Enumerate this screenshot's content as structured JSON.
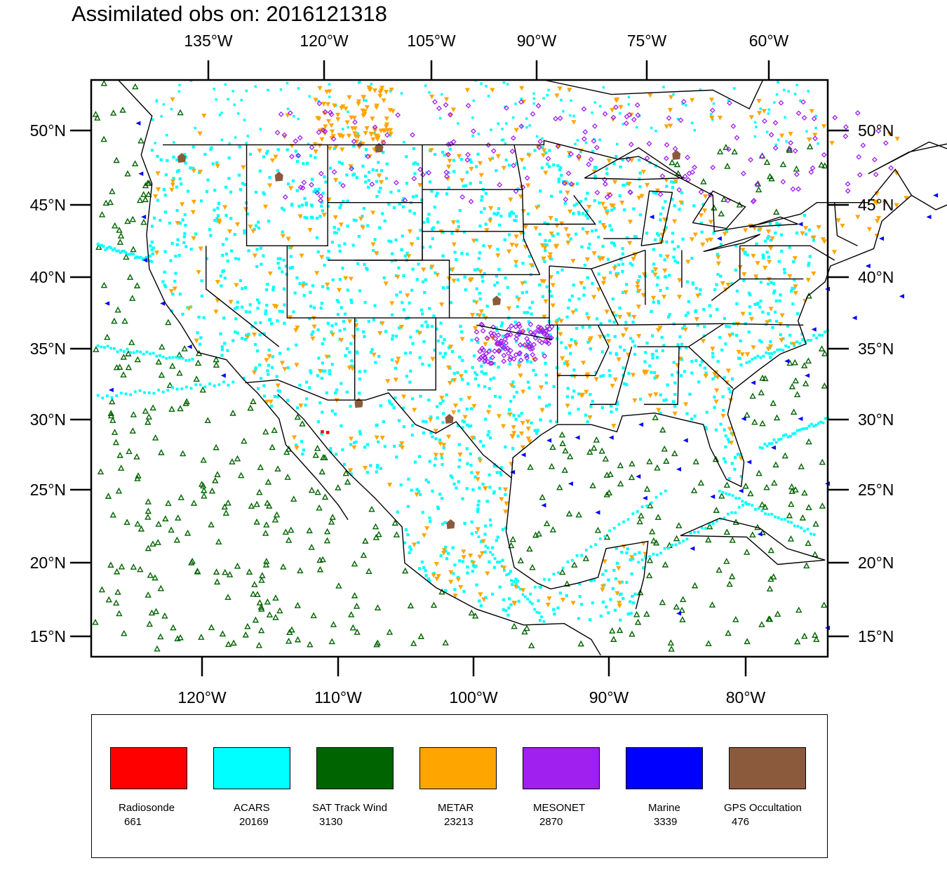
{
  "title": "Assimilated obs on: 2016121318",
  "map": {
    "top_lon_labels": [
      "135°W",
      "120°W",
      "105°W",
      "90°W",
      "75°W",
      "60°W"
    ],
    "bottom_lon_labels": [
      "120°W",
      "110°W",
      "100°W",
      "90°W",
      "80°W"
    ],
    "lat_labels": [
      "50°N",
      "45°N",
      "40°N",
      "35°N",
      "30°N",
      "25°N",
      "20°N",
      "15°N"
    ],
    "lon_range": [
      -128.5,
      -74
    ],
    "lat_range": [
      13.5,
      53.5
    ]
  },
  "legend": {
    "items": [
      {
        "name": "Radiosonde",
        "count": "661",
        "color": "#ff0000",
        "marker": "filled-square-icon"
      },
      {
        "name": "ACARS",
        "count": "20169",
        "color": "#00ffff",
        "marker": "filled-square-icon"
      },
      {
        "name": "SAT Track Wind",
        "count": "3130",
        "color": "#006400",
        "marker": "hollow-triangle-icon"
      },
      {
        "name": "METAR",
        "count": "23213",
        "color": "#ffa500",
        "marker": "down-triangle-icon"
      },
      {
        "name": "MESONET",
        "count": "2870",
        "color": "#a020f0",
        "marker": "diamond-icon"
      },
      {
        "name": "Marine",
        "count": "3339",
        "color": "#0000ff",
        "marker": "left-triangle-icon"
      },
      {
        "name": "GPS Occultation",
        "count": "476",
        "color": "#8b5a3c",
        "marker": "blob-icon"
      }
    ]
  }
}
